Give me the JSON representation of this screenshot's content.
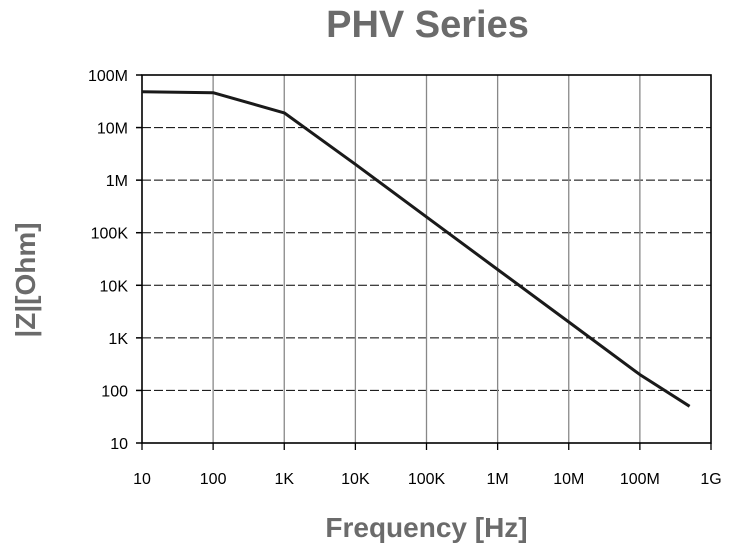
{
  "chart_data": {
    "type": "line",
    "title": "PHV Series",
    "xlabel": "Frequency [Hz]",
    "ylabel": "|Z|[Ohm]",
    "x_scale": "log",
    "y_scale": "log",
    "xlim": [
      10,
      1000000000
    ],
    "ylim": [
      10,
      100000000
    ],
    "x_ticks": [
      {
        "v": 10,
        "label": "10"
      },
      {
        "v": 100,
        "label": "100"
      },
      {
        "v": 1000,
        "label": "1K"
      },
      {
        "v": 10000,
        "label": "10K"
      },
      {
        "v": 100000,
        "label": "100K"
      },
      {
        "v": 1000000,
        "label": "1M"
      },
      {
        "v": 10000000,
        "label": "10M"
      },
      {
        "v": 100000000,
        "label": "100M"
      },
      {
        "v": 1000000000,
        "label": "1G"
      }
    ],
    "y_ticks": [
      {
        "v": 10,
        "label": "10"
      },
      {
        "v": 100,
        "label": "100"
      },
      {
        "v": 1000,
        "label": "1K"
      },
      {
        "v": 10000,
        "label": "10K"
      },
      {
        "v": 100000,
        "label": "100K"
      },
      {
        "v": 1000000,
        "label": "1M"
      },
      {
        "v": 10000000,
        "label": "10M"
      },
      {
        "v": 100000000,
        "label": "100M"
      }
    ],
    "grid": true,
    "series": [
      {
        "color": "#1a1a1a",
        "x": [
          10,
          100,
          1000,
          10000,
          100000,
          1000000,
          10000000,
          100000000,
          500000000
        ],
        "y": [
          48000000,
          46000000,
          19000000,
          2000000,
          200000,
          20000,
          2000,
          200,
          50
        ]
      }
    ],
    "colors": {
      "title": "#6b6b6b",
      "grid_vertical": "#888888",
      "grid_horizontal": "#000000"
    }
  }
}
